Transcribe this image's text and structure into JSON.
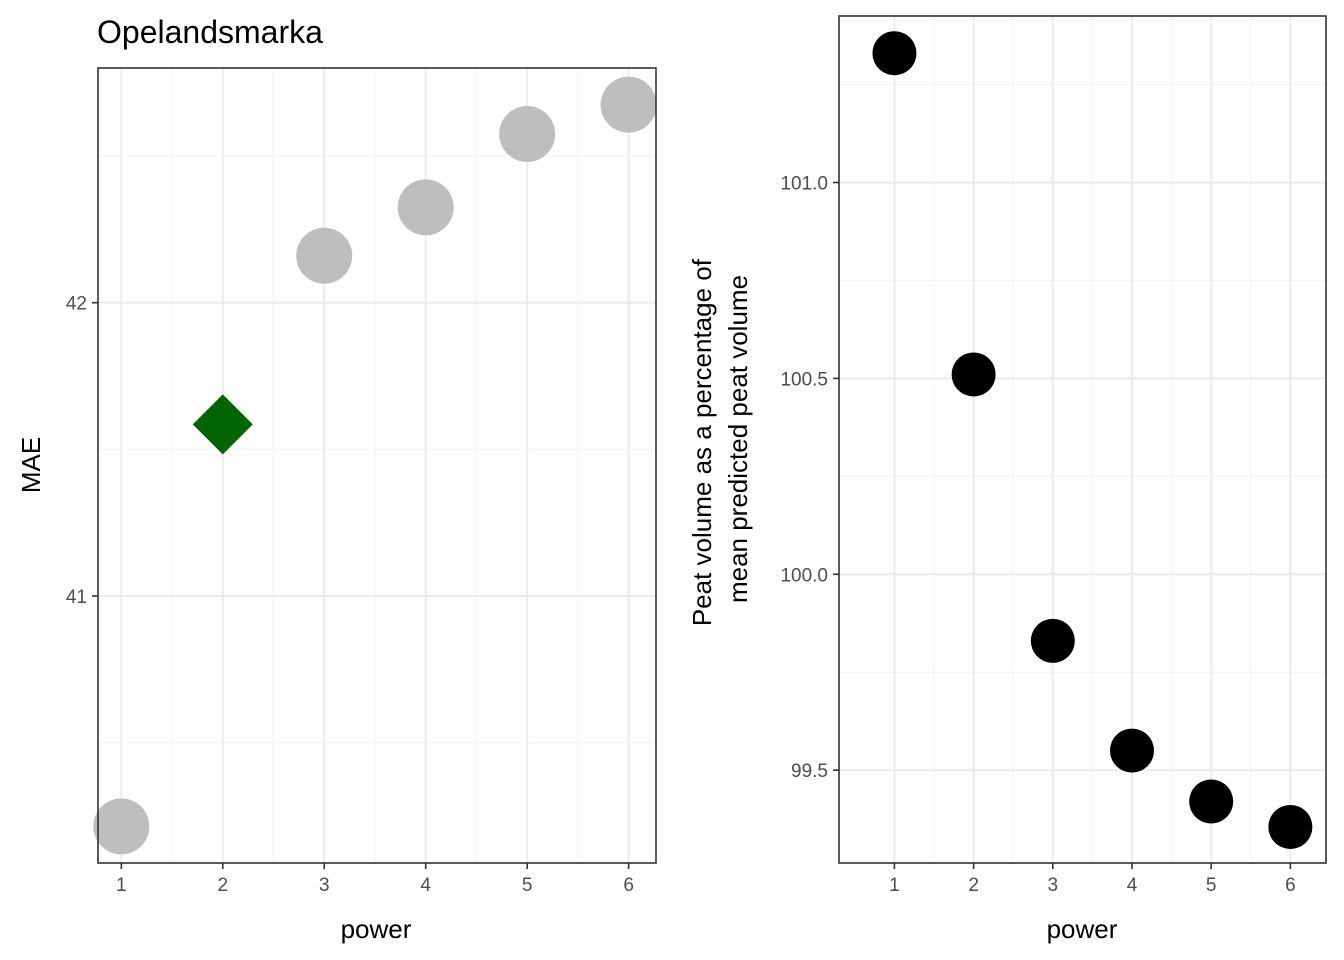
{
  "chart_data": [
    {
      "type": "scatter",
      "title": "Opelandsmarka",
      "xlabel": "power",
      "ylabel": [
        "MAE"
      ],
      "x": [
        1,
        2,
        3,
        4,
        5,
        6
      ],
      "x_ticks": [
        "1",
        "2",
        "3",
        "4",
        "5",
        "6"
      ],
      "xlim": [
        0.77,
        6.27
      ],
      "y_ticks": [
        {
          "value": 41,
          "label": "41"
        },
        {
          "value": 42,
          "label": "42"
        }
      ],
      "ylim": [
        40.09,
        42.8
      ],
      "grid": true,
      "points": [
        {
          "x": 1,
          "y": 40.215,
          "shape": "circle",
          "color": "#bebebe"
        },
        {
          "x": 2,
          "y": 41.585,
          "shape": "diamond",
          "color": "#006400"
        },
        {
          "x": 3,
          "y": 42.16,
          "shape": "circle",
          "color": "#bebebe"
        },
        {
          "x": 4,
          "y": 42.325,
          "shape": "circle",
          "color": "#bebebe"
        },
        {
          "x": 5,
          "y": 42.575,
          "shape": "circle",
          "color": "#bebebe"
        },
        {
          "x": 6,
          "y": 42.675,
          "shape": "circle",
          "color": "#bebebe"
        }
      ]
    },
    {
      "type": "scatter",
      "title": "",
      "xlabel": "power",
      "ylabel": [
        "Peat volume as a percentage of",
        "mean predicted peat volume"
      ],
      "x": [
        1,
        2,
        3,
        4,
        5,
        6
      ],
      "x_ticks": [
        "1",
        "2",
        "3",
        "4",
        "5",
        "6"
      ],
      "xlim": [
        0.3,
        6.45
      ],
      "y_ticks": [
        {
          "value": 99.5,
          "label": "99.5"
        },
        {
          "value": 100.0,
          "label": "100.0"
        },
        {
          "value": 100.5,
          "label": "100.5"
        },
        {
          "value": 101.0,
          "label": "101.0"
        }
      ],
      "ylim": [
        99.263,
        101.425
      ],
      "grid": true,
      "points": [
        {
          "x": 1,
          "y": 101.33,
          "shape": "circle",
          "color": "#000000"
        },
        {
          "x": 2,
          "y": 100.51,
          "shape": "circle",
          "color": "#000000"
        },
        {
          "x": 3,
          "y": 99.83,
          "shape": "circle",
          "color": "#000000"
        },
        {
          "x": 4,
          "y": 99.55,
          "shape": "circle",
          "color": "#000000"
        },
        {
          "x": 5,
          "y": 99.42,
          "shape": "circle",
          "color": "#000000"
        },
        {
          "x": 6,
          "y": 99.355,
          "shape": "circle",
          "color": "#000000"
        }
      ]
    }
  ]
}
